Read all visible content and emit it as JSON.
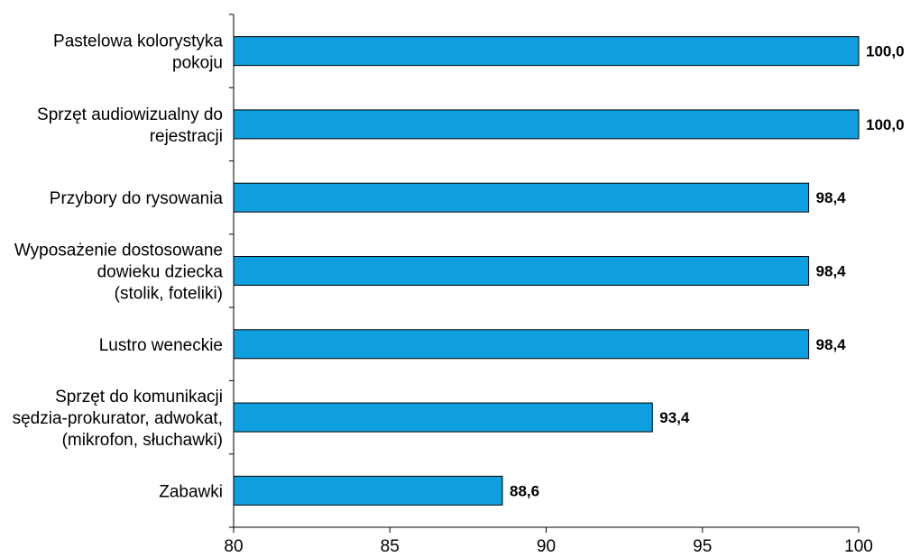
{
  "chart_data": {
    "type": "bar",
    "orientation": "horizontal",
    "categories": [
      [
        "Pastelowa kolorystyka",
        "pokoju"
      ],
      [
        "Sprzęt audiowizualny do",
        "rejestracji"
      ],
      [
        "Przybory do rysowania"
      ],
      [
        "Wyposażenie dostosowane",
        "dowieku dziecka",
        "(stolik, foteliki)"
      ],
      [
        "Lustro weneckie"
      ],
      [
        "Sprzęt do komunikacji",
        "sędzia-prokurator, adwokat,",
        "(mikrofon, słuchawki)"
      ],
      [
        "Zabawki"
      ]
    ],
    "values": [
      100.0,
      100.0,
      98.4,
      98.4,
      98.4,
      93.4,
      88.6
    ],
    "value_labels": [
      "100,0",
      "100,0",
      "98,4",
      "98,4",
      "98,4",
      "93,4",
      "88,6"
    ],
    "x_ticks": [
      "80",
      "85",
      "90",
      "95",
      "100"
    ],
    "xlim": [
      80,
      100
    ],
    "title": "",
    "xlabel": "",
    "ylabel": "",
    "grid": false,
    "legend": "none",
    "bar_color": "#0F9FDF",
    "bar_edge_color": "#000000"
  }
}
